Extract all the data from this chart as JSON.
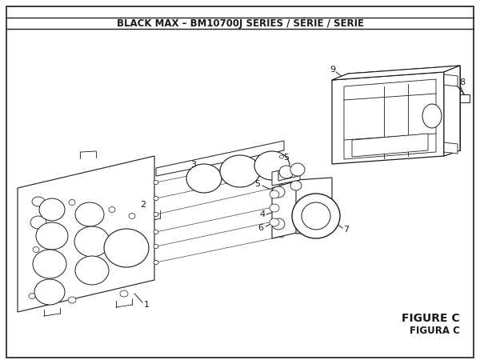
{
  "title": "BLACK MAX – BM10700J SERIES / SÉRIE / SERIE",
  "title_fontsize": 8.5,
  "bg_color": "#ffffff",
  "line_color": "#1a1a1a",
  "figure_label": "FIGURE C",
  "figure_sublabel": "FIGURA C",
  "figure_label_fontsize": 10,
  "border_color": "#1a1a1a"
}
